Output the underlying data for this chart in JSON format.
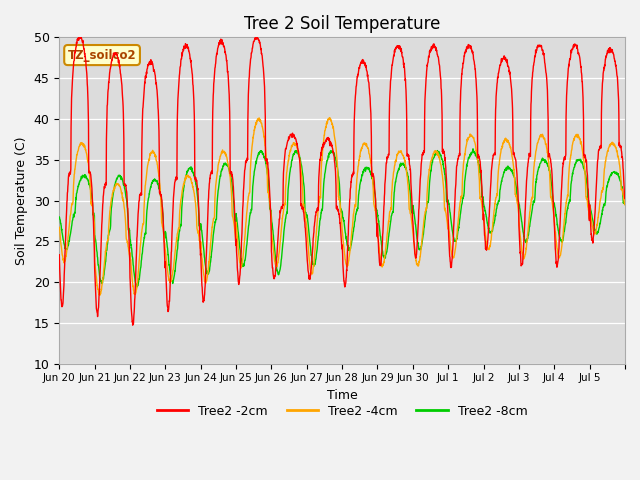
{
  "title": "Tree 2 Soil Temperature",
  "xlabel": "Time",
  "ylabel": "Soil Temperature (C)",
  "ylim": [
    10,
    50
  ],
  "annotation": "TZ_soilco2",
  "line_colors": [
    "#ff0000",
    "#ffa500",
    "#00cc00"
  ],
  "line_labels": [
    "Tree2 -2cm",
    "Tree2 -4cm",
    "Tree2 -8cm"
  ],
  "background_color": "#dcdcdc",
  "tick_labels": [
    "Jun 20",
    "Jun 21",
    "Jun 22",
    "Jun 23",
    "Jun 24",
    "Jun 25",
    "Jun 26",
    "Jun 27",
    "Jun 28",
    "Jun 29",
    "Jun 30",
    "Jul 1",
    "Jul 2",
    "Jul 3",
    "Jul 4",
    "Jul 5"
  ],
  "n_days": 16,
  "points_per_day": 144,
  "yticks": [
    10,
    15,
    20,
    25,
    30,
    35,
    40,
    45,
    50
  ],
  "peak_2cm": [
    50.0,
    48.0,
    47.0,
    49.0,
    49.5,
    50.0,
    38.0,
    37.5,
    47.0,
    49.0,
    49.0,
    49.0,
    47.5,
    49.0,
    49.0,
    48.5
  ],
  "trough_2cm": [
    17.0,
    16.0,
    14.8,
    16.5,
    17.5,
    20.0,
    20.5,
    20.5,
    19.5,
    22.0,
    23.0,
    22.0,
    24.0,
    22.0,
    22.0,
    25.0
  ],
  "peak_4cm": [
    37.0,
    32.0,
    36.0,
    33.0,
    36.0,
    40.0,
    37.0,
    40.0,
    37.0,
    36.0,
    36.0,
    38.0,
    37.5,
    38.0,
    38.0,
    37.0
  ],
  "trough_4cm": [
    22.5,
    18.5,
    18.5,
    20.0,
    20.0,
    22.0,
    22.0,
    21.0,
    22.0,
    22.0,
    22.0,
    23.0,
    24.0,
    23.0,
    23.0,
    26.0
  ],
  "peak_8cm": [
    33.0,
    33.0,
    32.5,
    34.0,
    34.5,
    36.0,
    36.0,
    36.0,
    34.0,
    34.5,
    36.0,
    36.0,
    34.0,
    35.0,
    35.0,
    33.5
  ],
  "trough_8cm": [
    24.0,
    20.0,
    19.5,
    20.0,
    21.0,
    22.0,
    21.0,
    22.0,
    24.0,
    23.0,
    24.0,
    25.0,
    26.0,
    25.0,
    25.0,
    26.0
  ]
}
